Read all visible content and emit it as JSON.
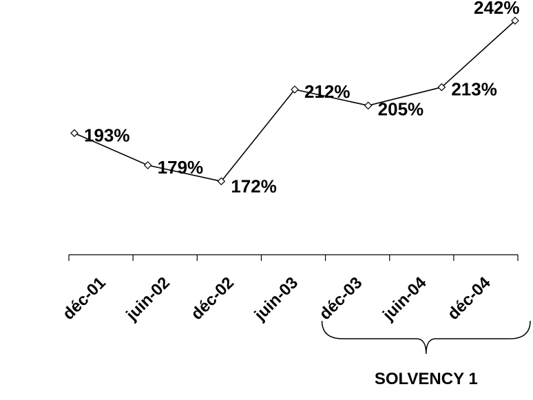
{
  "chart_data": {
    "type": "line",
    "categories": [
      "déc-01",
      "juin-02",
      "déc-02",
      "juin-03",
      "déc-03",
      "juin-04",
      "déc-04"
    ],
    "series": [
      {
        "values": [
          193,
          179,
          172,
          212,
          205,
          213,
          242
        ]
      }
    ],
    "data_labels": [
      "193%",
      "179%",
      "172%",
      "212%",
      "205%",
      "213%",
      "242%"
    ],
    "value_unit": "%",
    "ylim": [
      140,
      245
    ],
    "grid": false,
    "legend": "none",
    "marker": "diamond-open",
    "annotation": {
      "text": "SOLVENCY 1",
      "spans": [
        "déc-03",
        "déc-04"
      ]
    },
    "colors": {
      "line": "#000000",
      "marker_fill": "#ffffff",
      "text": "#000000"
    }
  }
}
